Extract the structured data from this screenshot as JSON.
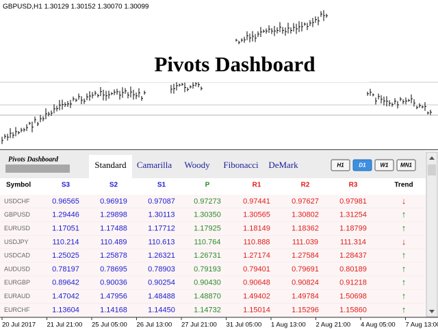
{
  "chart": {
    "header": "GBPUSD,H1  1.30129 1.30152 1.30070 1.30099",
    "overlay_title": "Pivots Dashboard",
    "time_labels": [
      "20 Jul 2017",
      "21 Jul 21:00",
      "25 Jul 05:00",
      "26 Jul 13:00",
      "27 Jul 21:00",
      "31 Jul 05:00",
      "1 Aug 13:00",
      "2 Aug 21:00",
      "4 Aug 05:00",
      "7 Aug 13:00"
    ]
  },
  "dashboard": {
    "logo": "Pivots Dashboard",
    "tabs": [
      "Standard",
      "Camarilla",
      "Woody",
      "Fibonacci",
      "DeMark"
    ],
    "active_tab": 0,
    "timeframes": [
      "H1",
      "D1",
      "W1",
      "MN1"
    ],
    "active_timeframe": 1,
    "table": {
      "symbol_header": "Symbol",
      "trend_header": "Trend",
      "columns": [
        {
          "label": "S3",
          "color": "#1c1cd0"
        },
        {
          "label": "S2",
          "color": "#1c1cd0"
        },
        {
          "label": "S1",
          "color": "#1c1cd0"
        },
        {
          "label": "P",
          "color": "#2a8a2a"
        },
        {
          "label": "R1",
          "color": "#e01c1c"
        },
        {
          "label": "R2",
          "color": "#e01c1c"
        },
        {
          "label": "R3",
          "color": "#e01c1c"
        }
      ],
      "rows": [
        {
          "symbol": "USDCHF",
          "levels": [
            "0.96565",
            "0.96919",
            "0.97087",
            "0.97273",
            "0.97441",
            "0.97627",
            "0.97981"
          ],
          "trend": "↓",
          "trend_color": "#e01c1c"
        },
        {
          "symbol": "GBPUSD",
          "levels": [
            "1.29446",
            "1.29898",
            "1.30113",
            "1.30350",
            "1.30565",
            "1.30802",
            "1.31254"
          ],
          "trend": "↑",
          "trend_color": "#1a8a1a"
        },
        {
          "symbol": "EURUSD",
          "levels": [
            "1.17051",
            "1.17488",
            "1.17712",
            "1.17925",
            "1.18149",
            "1.18362",
            "1.18799"
          ],
          "trend": "↑",
          "trend_color": "#1a8a1a"
        },
        {
          "symbol": "USDJPY",
          "levels": [
            "110.214",
            "110.489",
            "110.613",
            "110.764",
            "110.888",
            "111.039",
            "111.314"
          ],
          "trend": "↓",
          "trend_color": "#e01c1c"
        },
        {
          "symbol": "USDCAD",
          "levels": [
            "1.25025",
            "1.25878",
            "1.26321",
            "1.26731",
            "1.27174",
            "1.27584",
            "1.28437"
          ],
          "trend": "↑",
          "trend_color": "#1a8a1a"
        },
        {
          "symbol": "AUDUSD",
          "levels": [
            "0.78197",
            "0.78695",
            "0.78903",
            "0.79193",
            "0.79401",
            "0.79691",
            "0.80189"
          ],
          "trend": "↑",
          "trend_color": "#1a8a1a"
        },
        {
          "symbol": "EURGBP",
          "levels": [
            "0.89642",
            "0.90036",
            "0.90254",
            "0.90430",
            "0.90648",
            "0.90824",
            "0.91218"
          ],
          "trend": "↑",
          "trend_color": "#1a8a1a"
        },
        {
          "symbol": "EURAUD",
          "levels": [
            "1.47042",
            "1.47956",
            "1.48488",
            "1.48870",
            "1.49402",
            "1.49784",
            "1.50698"
          ],
          "trend": "↑",
          "trend_color": "#1a8a1a"
        },
        {
          "symbol": "EURCHF",
          "levels": [
            "1.13604",
            "1.14168",
            "1.14450",
            "1.14732",
            "1.15014",
            "1.15296",
            "1.15860"
          ],
          "trend": "↑",
          "trend_color": "#1a8a1a"
        }
      ]
    }
  }
}
